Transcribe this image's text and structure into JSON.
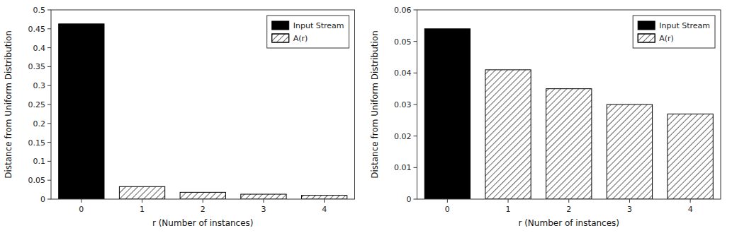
{
  "chart_data": [
    {
      "type": "bar",
      "categories": [
        "0",
        "1",
        "2",
        "3",
        "4"
      ],
      "series": [
        {
          "name": "Input Stream",
          "color": "#000000",
          "values": [
            0.463,
            null,
            null,
            null,
            null
          ]
        },
        {
          "name": "A(r)",
          "color": "#ffffff",
          "values": [
            null,
            0.033,
            0.018,
            0.013,
            0.01
          ]
        }
      ],
      "xlabel": "r (Number of instances)",
      "ylabel": "Distance from Uniform Distribution",
      "ylim": [
        0,
        0.5
      ],
      "yticks": [
        0,
        0.05,
        0.1,
        0.15,
        0.2,
        0.25,
        0.3,
        0.35,
        0.4,
        0.45,
        0.5
      ],
      "grid": false,
      "legend": "upper right"
    },
    {
      "type": "bar",
      "categories": [
        "0",
        "1",
        "2",
        "3",
        "4"
      ],
      "series": [
        {
          "name": "Input Stream",
          "color": "#000000",
          "values": [
            0.054,
            null,
            null,
            null,
            null
          ]
        },
        {
          "name": "A(r)",
          "color": "#ffffff",
          "values": [
            null,
            0.041,
            0.035,
            0.03,
            0.027
          ]
        }
      ],
      "xlabel": "r (Number of instances)",
      "ylabel": "Distance from Uniform Distribution",
      "ylim": [
        0,
        0.06
      ],
      "yticks": [
        0,
        0.01,
        0.02,
        0.03,
        0.04,
        0.05,
        0.06
      ],
      "grid": false,
      "legend": "upper right"
    }
  ]
}
